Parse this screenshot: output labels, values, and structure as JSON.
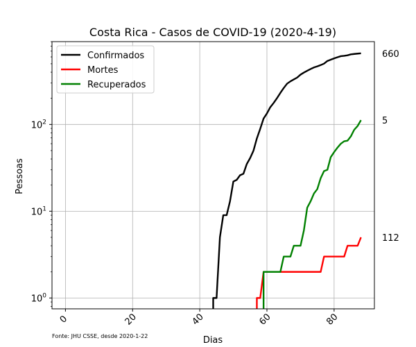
{
  "chart_data": {
    "type": "line",
    "title": "Costa Rica - Casos de COVID-19 (2020-4-19)",
    "xlabel": "Dias",
    "ylabel": "Pessoas",
    "yscale": "log",
    "xlim": [
      -4,
      92
    ],
    "ylim": [
      0.75,
      900
    ],
    "grid": true,
    "legend": "top-left",
    "x_ticks": [
      0,
      20,
      40,
      60,
      80
    ],
    "y_ticks": [
      {
        "base": "10",
        "exp": "0",
        "value": 1
      },
      {
        "base": "10",
        "exp": "1",
        "value": 10
      },
      {
        "base": "10",
        "exp": "2",
        "value": 100
      }
    ],
    "source_note": "Fonte: JHU CSSE, desde 2020-1-22",
    "end_labels": [
      "660",
      "112",
      "5"
    ],
    "series": [
      {
        "name": "Confirmados",
        "color": "#000000",
        "x": [
          44,
          45,
          46,
          47,
          48,
          49,
          50,
          51,
          52,
          53,
          54,
          55,
          56,
          57,
          58,
          59,
          60,
          61,
          62,
          63,
          64,
          65,
          66,
          67,
          68,
          69,
          70,
          71,
          72,
          73,
          74,
          75,
          76,
          77,
          78,
          79,
          80,
          81,
          82,
          83,
          84,
          85,
          86,
          87,
          88
        ],
        "y": [
          1,
          1,
          5,
          9,
          9,
          13,
          22,
          23,
          26,
          27,
          35,
          41,
          50,
          69,
          89,
          117,
          134,
          158,
          177,
          201,
          231,
          263,
          295,
          314,
          330,
          347,
          375,
          396,
          416,
          435,
          454,
          467,
          483,
          502,
          539,
          558,
          577,
          595,
          612,
          618,
          626,
          642,
          649,
          655,
          660
        ]
      },
      {
        "name": "Mortes",
        "color": "#ff0000",
        "x": [
          57,
          58,
          59,
          60,
          61,
          62,
          63,
          64,
          65,
          66,
          67,
          68,
          69,
          70,
          71,
          72,
          73,
          74,
          75,
          76,
          77,
          78,
          79,
          80,
          81,
          82,
          83,
          84,
          85,
          86,
          87,
          88
        ],
        "y": [
          1,
          1,
          2,
          2,
          2,
          2,
          2,
          2,
          2,
          2,
          2,
          2,
          2,
          2,
          2,
          2,
          2,
          2,
          2,
          2,
          3,
          3,
          3,
          3,
          3,
          3,
          3,
          4,
          4,
          4,
          4,
          5
        ]
      },
      {
        "name": "Recuperados",
        "color": "#008000",
        "x": [
          59,
          60,
          61,
          62,
          63,
          64,
          65,
          66,
          67,
          68,
          69,
          70,
          71,
          72,
          73,
          74,
          75,
          76,
          77,
          78,
          79,
          80,
          81,
          82,
          83,
          84,
          85,
          86,
          87,
          88
        ],
        "y": [
          2,
          2,
          2,
          2,
          2,
          2,
          3,
          3,
          3,
          4,
          4,
          4,
          6,
          11,
          13,
          16,
          18,
          24,
          29,
          30,
          42,
          48,
          54,
          60,
          64,
          65,
          73,
          87,
          96,
          112
        ]
      }
    ]
  }
}
